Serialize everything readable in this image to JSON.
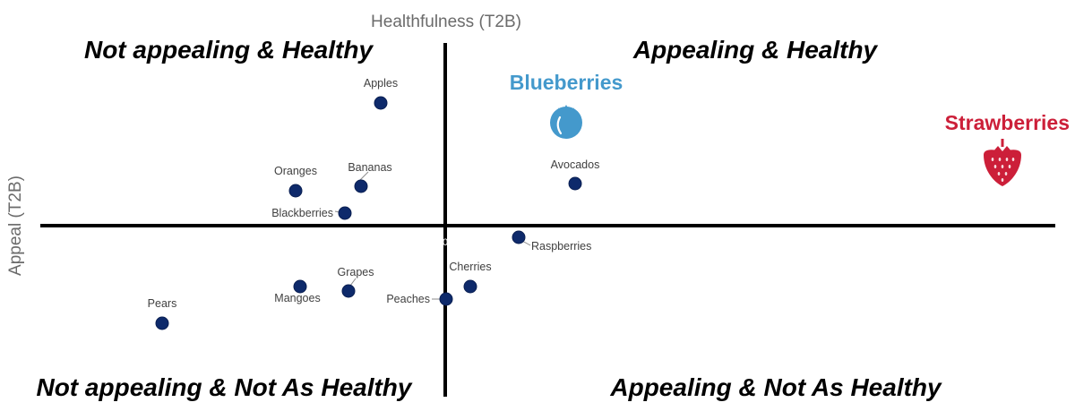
{
  "chart_data": {
    "type": "scatter",
    "xlabel": "Appeal (T2B)",
    "ylabel": "Healthfulness (T2B)",
    "origin_label": "0",
    "quadrants": {
      "top_left": "Not appealing & Healthy",
      "top_right": "Appealing & Healthy",
      "bottom_left": "Not appealing & Not As Healthy",
      "bottom_right": "Appealing & Not As Healthy"
    },
    "points": [
      {
        "label": "Apples",
        "x": -72,
        "y": 137
      },
      {
        "label": "Oranges",
        "x": -167,
        "y": 39
      },
      {
        "label": "Bananas",
        "x": -94,
        "y": 44
      },
      {
        "label": "Blackberries",
        "x": -112,
        "y": 14
      },
      {
        "label": "Avocados",
        "x": 145,
        "y": 47
      },
      {
        "label": "Raspberries",
        "x": 82,
        "y": -13
      },
      {
        "label": "Cherries",
        "x": 28,
        "y": -68
      },
      {
        "label": "Peaches",
        "x": 1,
        "y": -82
      },
      {
        "label": "Grapes",
        "x": -108,
        "y": -73
      },
      {
        "label": "Mangoes",
        "x": -162,
        "y": -68
      },
      {
        "label": "Pears",
        "x": -316,
        "y": -109
      }
    ],
    "highlights": [
      {
        "label": "Blueberries",
        "x": 135,
        "y": 122,
        "color": "#4499cc",
        "icon": "blueberry-icon"
      },
      {
        "label": "Strawberries",
        "x": 622,
        "y": 70,
        "color": "#cc1f39",
        "icon": "strawberry-icon"
      }
    ],
    "point_color": "#0e2a6b",
    "xlim": [
      -497,
      683
    ],
    "ylim": [
      -190,
      235
    ]
  }
}
